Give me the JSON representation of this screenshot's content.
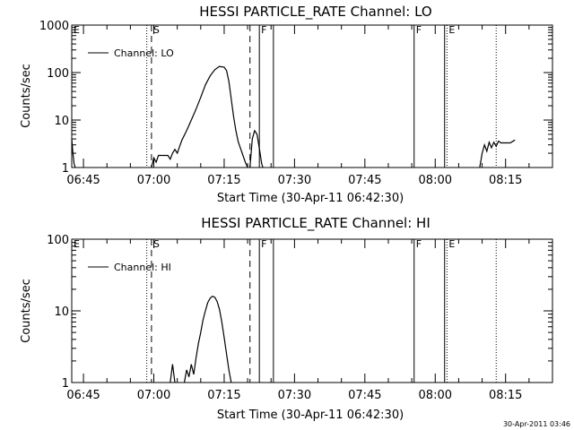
{
  "footer_timestamp": "30-Apr-2011 03:46",
  "chart_data": [
    {
      "type": "line",
      "title": "HESSI PARTICLE_RATE Channel: LO",
      "xlabel": "Start Time (30-Apr-11 06:42:30)",
      "ylabel": "Counts/sec",
      "yscale": "log",
      "ylim": [
        1,
        1000
      ],
      "xlim": [
        "06:42:30",
        "08:25:00"
      ],
      "x_ticks": [
        "06:45",
        "07:00",
        "07:15",
        "07:30",
        "07:45",
        "08:00",
        "08:15"
      ],
      "y_ticks": [
        "1",
        "10",
        "100",
        "1000"
      ],
      "legend": {
        "placement": "top-left",
        "entries": [
          "Channel: LO"
        ]
      },
      "grid": false,
      "markers": [
        {
          "label": "E",
          "time": "06:42:30",
          "style": "dotted"
        },
        {
          "label": "",
          "time": "06:58:30",
          "style": "dotted"
        },
        {
          "label": "S",
          "time": "06:59:30",
          "style": "dashed"
        },
        {
          "label": "",
          "time": "07:20:30",
          "style": "dashed"
        },
        {
          "label": "F",
          "time": "07:22:30",
          "style": "solid"
        },
        {
          "label": "",
          "time": "07:25:30",
          "style": "solid"
        },
        {
          "label": "F",
          "time": "07:55:30",
          "style": "solid"
        },
        {
          "label": "",
          "time": "08:02:00",
          "style": "solid"
        },
        {
          "label": "E",
          "time": "08:02:30",
          "style": "dotted"
        },
        {
          "label": "",
          "time": "08:13:00",
          "style": "dotted"
        }
      ],
      "series": [
        {
          "name": "Channel: LO",
          "segments": [
            [
              [
                "06:42:30",
                4
              ],
              [
                "06:42:45",
                2
              ],
              [
                "06:43:00",
                1.2
              ],
              [
                "06:43:15",
                1
              ]
            ],
            [
              [
                "06:59:30",
                1
              ],
              [
                "07:00:00",
                1.6
              ],
              [
                "07:00:30",
                1.3
              ],
              [
                "07:01:00",
                1.8
              ],
              [
                "07:03:00",
                1.8
              ],
              [
                "07:03:30",
                1.5
              ],
              [
                "07:04:00",
                2
              ],
              [
                "07:04:30",
                2.4
              ],
              [
                "07:05:00",
                2
              ],
              [
                "07:05:30",
                2.8
              ],
              [
                "07:06:00",
                3.8
              ],
              [
                "07:07:00",
                6
              ],
              [
                "07:08:00",
                10
              ],
              [
                "07:09:00",
                17
              ],
              [
                "07:10:00",
                30
              ],
              [
                "07:11:00",
                55
              ],
              [
                "07:12:00",
                85
              ],
              [
                "07:13:00",
                115
              ],
              [
                "07:14:00",
                135
              ],
              [
                "07:15:00",
                130
              ],
              [
                "07:15:30",
                110
              ],
              [
                "07:16:00",
                65
              ],
              [
                "07:16:30",
                28
              ],
              [
                "07:17:00",
                12
              ],
              [
                "07:17:30",
                6
              ],
              [
                "07:18:00",
                3.5
              ],
              [
                "07:19:00",
                1.8
              ],
              [
                "07:19:30",
                1.3
              ],
              [
                "07:20:00",
                1
              ]
            ],
            [
              [
                "07:20:30",
                1
              ],
              [
                "07:21:00",
                4
              ],
              [
                "07:21:30",
                6
              ],
              [
                "07:22:00",
                5
              ],
              [
                "07:22:30",
                2.5
              ],
              [
                "07:23:00",
                1.2
              ],
              [
                "07:23:15",
                1
              ]
            ],
            [
              [
                "08:09:30",
                1
              ],
              [
                "08:10:00",
                2
              ],
              [
                "08:10:30",
                3
              ],
              [
                "08:11:00",
                2.2
              ],
              [
                "08:11:30",
                3.4
              ],
              [
                "08:12:00",
                2.6
              ],
              [
                "08:12:30",
                3.4
              ],
              [
                "08:13:00",
                2.8
              ],
              [
                "08:13:30",
                3.6
              ],
              [
                "08:14:00",
                3.3
              ],
              [
                "08:16:00",
                3.3
              ],
              [
                "08:17:00",
                3.8
              ]
            ]
          ]
        }
      ]
    },
    {
      "type": "line",
      "title": "HESSI PARTICLE_RATE Channel: HI",
      "xlabel": "Start Time (30-Apr-11 06:42:30)",
      "ylabel": "Counts/sec",
      "yscale": "log",
      "ylim": [
        1,
        100
      ],
      "xlim": [
        "06:42:30",
        "08:25:00"
      ],
      "x_ticks": [
        "06:45",
        "07:00",
        "07:15",
        "07:30",
        "07:45",
        "08:00",
        "08:15"
      ],
      "y_ticks": [
        "1",
        "10",
        "100"
      ],
      "legend": {
        "placement": "top-left",
        "entries": [
          "Channel: HI"
        ]
      },
      "grid": false,
      "markers": [
        {
          "label": "E",
          "time": "06:42:30",
          "style": "dotted"
        },
        {
          "label": "",
          "time": "06:58:30",
          "style": "dotted"
        },
        {
          "label": "S",
          "time": "06:59:30",
          "style": "dashed"
        },
        {
          "label": "",
          "time": "07:20:30",
          "style": "dashed"
        },
        {
          "label": "F",
          "time": "07:22:30",
          "style": "solid"
        },
        {
          "label": "",
          "time": "07:25:30",
          "style": "solid"
        },
        {
          "label": "F",
          "time": "07:55:30",
          "style": "solid"
        },
        {
          "label": "",
          "time": "08:02:00",
          "style": "solid"
        },
        {
          "label": "E",
          "time": "08:02:30",
          "style": "dotted"
        },
        {
          "label": "",
          "time": "08:13:00",
          "style": "dotted"
        }
      ],
      "series": [
        {
          "name": "Channel: HI",
          "segments": [
            [
              [
                "07:03:30",
                1
              ],
              [
                "07:04:00",
                1.8
              ],
              [
                "07:04:30",
                1
              ]
            ],
            [
              [
                "07:06:30",
                1
              ],
              [
                "07:07:00",
                1.5
              ],
              [
                "07:07:30",
                1.2
              ],
              [
                "07:08:00",
                1.8
              ],
              [
                "07:08:30",
                1.3
              ],
              [
                "07:09:00",
                2.2
              ],
              [
                "07:09:30",
                3.5
              ],
              [
                "07:10:00",
                5
              ],
              [
                "07:10:30",
                7.5
              ],
              [
                "07:11:00",
                10
              ],
              [
                "07:11:30",
                13
              ],
              [
                "07:12:00",
                15
              ],
              [
                "07:12:30",
                16
              ],
              [
                "07:13:00",
                15.5
              ],
              [
                "07:13:30",
                13.5
              ],
              [
                "07:14:00",
                10.5
              ],
              [
                "07:14:30",
                7
              ],
              [
                "07:15:00",
                4.2
              ],
              [
                "07:15:30",
                2.5
              ],
              [
                "07:16:00",
                1.5
              ],
              [
                "07:16:30",
                1
              ]
            ]
          ]
        }
      ]
    }
  ]
}
